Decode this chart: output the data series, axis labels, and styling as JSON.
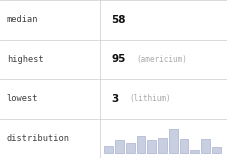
{
  "rows": [
    {
      "label": "median",
      "value": "58",
      "extra": ""
    },
    {
      "label": "highest",
      "value": "95",
      "extra": "(americium)"
    },
    {
      "label": "lowest",
      "value": "3",
      "extra": "(lithium)"
    },
    {
      "label": "distribution",
      "value": "",
      "extra": ""
    }
  ],
  "hist_bars": [
    0.28,
    0.48,
    0.38,
    0.62,
    0.48,
    0.55,
    0.88,
    0.52,
    0.1,
    0.5,
    0.22
  ],
  "bar_color": "#c8cfe0",
  "bar_edge_color": "#9aa4c8",
  "grid_color": "#cccccc",
  "label_color": "#404040",
  "value_color": "#111111",
  "extra_color": "#aaaaaa",
  "bg_color": "#ffffff",
  "label_fontsize": 6.2,
  "value_fontsize": 7.5,
  "extra_fontsize": 5.5,
  "col_split": 0.44
}
